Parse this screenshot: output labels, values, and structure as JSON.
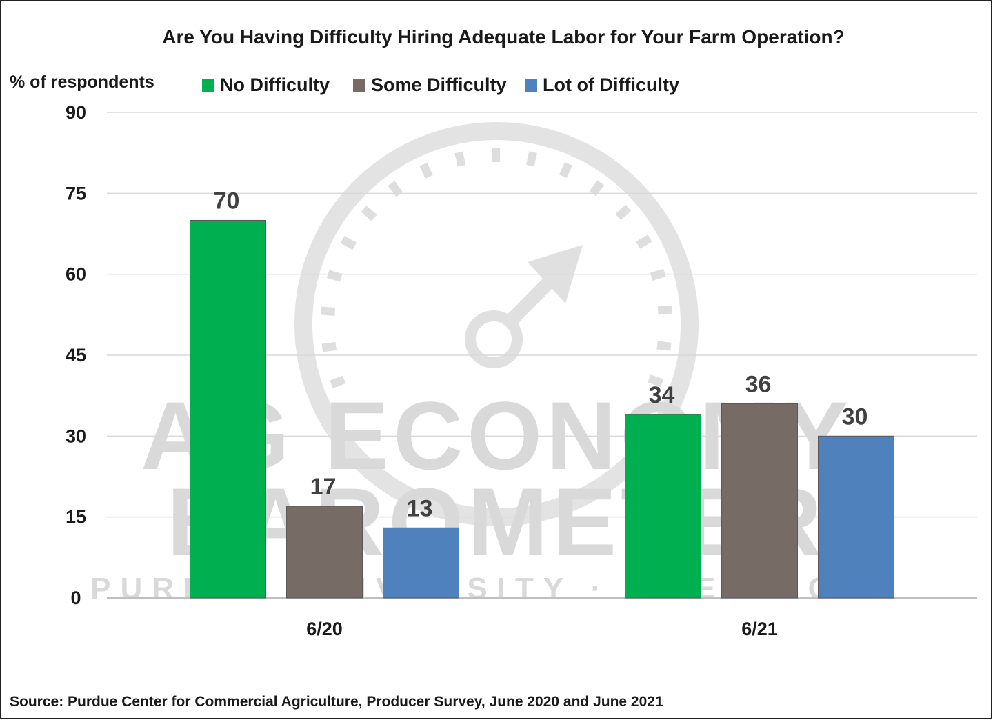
{
  "chart_data": {
    "type": "bar",
    "title": "Are You Having Difficulty Hiring Adequate Labor for Your Farm Operation?",
    "ylabel": "% of respondents",
    "xlabel": "",
    "categories": [
      "6/20",
      "6/21"
    ],
    "series": [
      {
        "name": "No Difficulty",
        "values": [
          70,
          34
        ],
        "color": "#00b050"
      },
      {
        "name": "Some Difficulty",
        "values": [
          17,
          36
        ],
        "color": "#766b65"
      },
      {
        "name": "Lot of Difficulty",
        "values": [
          13,
          30
        ],
        "color": "#4f81bd"
      }
    ],
    "ylim": [
      0,
      90
    ],
    "yticks": [
      0,
      15,
      30,
      45,
      60,
      75,
      90
    ],
    "grid": true,
    "legend_position": "top"
  },
  "watermark": {
    "line1": "AG ECONOMY",
    "line2": "BAROMETER",
    "line3": "PURDUE UNIVERSITY · CME GROUP"
  },
  "source": "Source: Purdue Center for Commercial Agriculture, Producer Survey, June 2020 and June 2021"
}
